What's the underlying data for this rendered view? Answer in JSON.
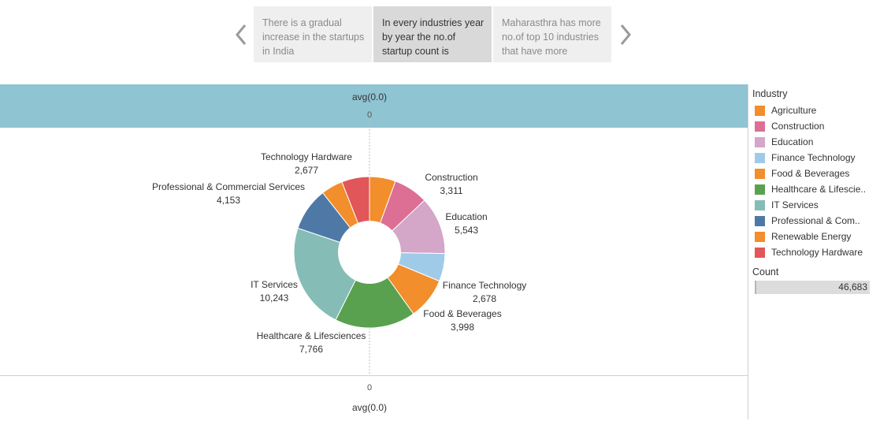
{
  "story": {
    "points": [
      {
        "text": "There is a gradual increase in the startups in India",
        "active": false
      },
      {
        "text": "In every industries year by year the no.of startup count is",
        "active": true
      },
      {
        "text": "Maharasthra has more no.of top 10 industries that have more",
        "active": false
      }
    ]
  },
  "axis": {
    "top_label": "avg(0.0)",
    "top_tick": "0",
    "bottom_label": "avg(0.0)",
    "bottom_tick": "0"
  },
  "legend": {
    "title": "Industry",
    "items": [
      {
        "label": "Agriculture",
        "color": "#f28e2b"
      },
      {
        "label": "Construction",
        "color": "#dc6f93"
      },
      {
        "label": "Education",
        "color": "#d4a6c8"
      },
      {
        "label": "Finance Technology",
        "color": "#a0cbe8"
      },
      {
        "label": "Food & Beverages",
        "color": "#f28e2b"
      },
      {
        "label": "Healthcare & Lifescie..",
        "color": "#59a14f"
      },
      {
        "label": "IT Services",
        "color": "#86bcb6"
      },
      {
        "label": "Professional & Com..",
        "color": "#4e79a7"
      },
      {
        "label": "Renewable Energy",
        "color": "#f28e2b"
      },
      {
        "label": "Technology Hardware",
        "color": "#e15759"
      }
    ]
  },
  "count": {
    "title": "Count",
    "value": "46,683"
  },
  "chart_data": {
    "type": "pie",
    "donut": true,
    "title": "",
    "slices": [
      {
        "label": "Agriculture",
        "value": 2514,
        "value_label": "",
        "color": "#f28e2b"
      },
      {
        "label": "Construction",
        "value": 3311,
        "value_label": "3,311",
        "color": "#dc6f93"
      },
      {
        "label": "Education",
        "value": 5543,
        "value_label": "5,543",
        "color": "#d4a6c8"
      },
      {
        "label": "Finance Technology",
        "value": 2678,
        "value_label": "2,678",
        "color": "#a0cbe8"
      },
      {
        "label": "Food & Beverages",
        "value": 3998,
        "value_label": "3,998",
        "color": "#f28e2b"
      },
      {
        "label": "Healthcare & Lifesciences",
        "value": 7766,
        "value_label": "7,766",
        "color": "#59a14f"
      },
      {
        "label": "IT Services",
        "value": 10243,
        "value_label": "10,243",
        "color": "#86bcb6"
      },
      {
        "label": "Professional & Commercial Services",
        "value": 4153,
        "value_label": "4,153",
        "color": "#4e79a7"
      },
      {
        "label": "Renewable Energy",
        "value": 2092,
        "value_label": "",
        "color": "#f28e2b"
      },
      {
        "label": "Technology Hardware",
        "value": 2677,
        "value_label": "2,677",
        "color": "#e15759"
      }
    ]
  }
}
